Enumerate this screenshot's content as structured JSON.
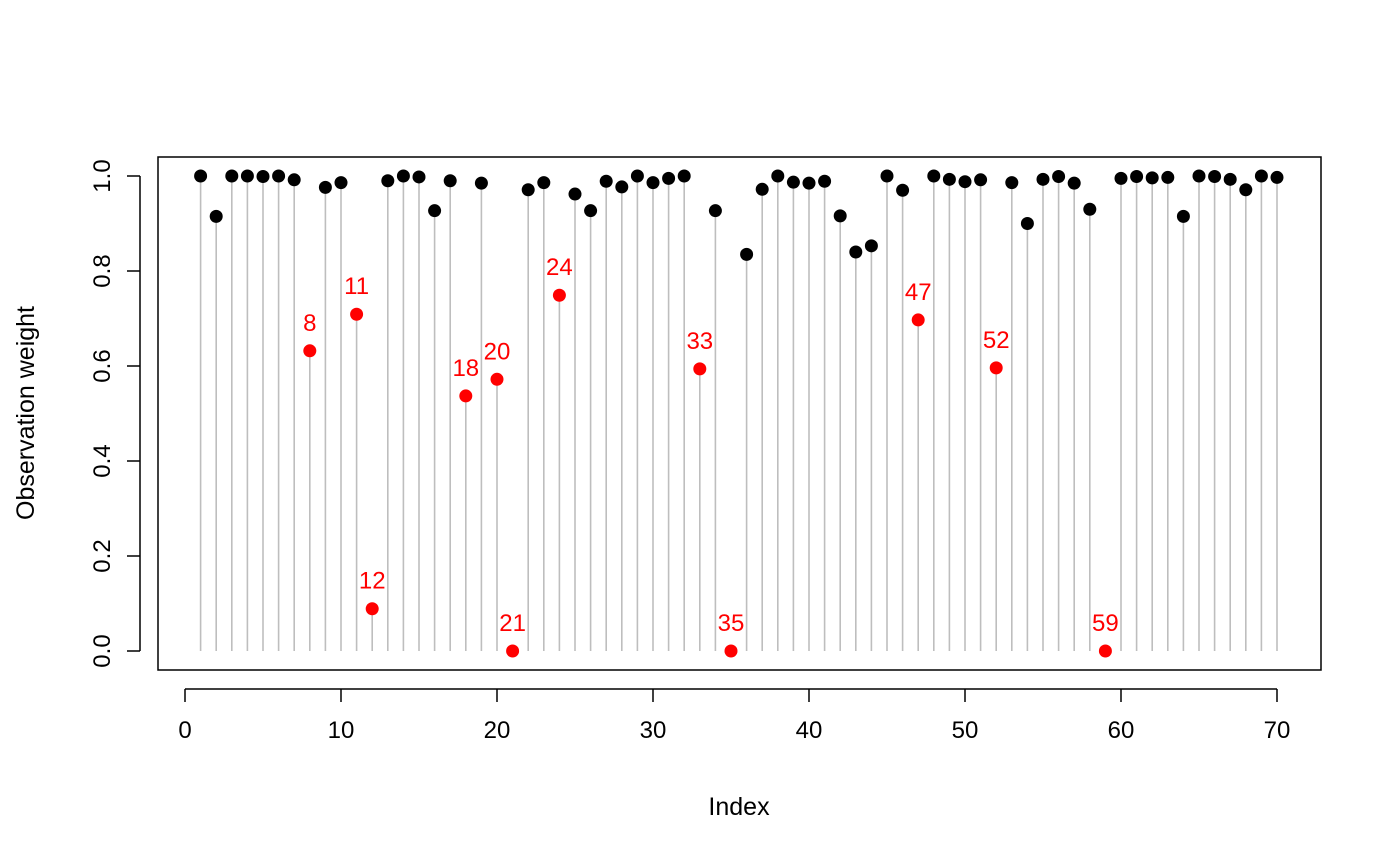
{
  "chart_data": {
    "type": "scatter",
    "style": "needle",
    "title": "",
    "xlabel": "Index",
    "ylabel": "Observation weight",
    "xlim": [
      0,
      70
    ],
    "ylim": [
      0,
      1
    ],
    "xticks": [
      "0",
      "10",
      "20",
      "30",
      "40",
      "50",
      "60",
      "70"
    ],
    "yticks": [
      "0.0",
      "0.2",
      "0.4",
      "0.6",
      "0.8",
      "1.0"
    ],
    "grid": false,
    "legend": "none",
    "colors": {
      "normal": "#000000",
      "flagged": "#ff0000",
      "stem": "#bebebe"
    },
    "points": [
      {
        "x": 1,
        "y": 1.0
      },
      {
        "x": 2,
        "y": 0.915
      },
      {
        "x": 3,
        "y": 1.0
      },
      {
        "x": 4,
        "y": 1.0
      },
      {
        "x": 5,
        "y": 0.999
      },
      {
        "x": 6,
        "y": 1.0
      },
      {
        "x": 7,
        "y": 0.992
      },
      {
        "x": 8,
        "y": 0.632,
        "label": "8"
      },
      {
        "x": 9,
        "y": 0.976
      },
      {
        "x": 10,
        "y": 0.986
      },
      {
        "x": 11,
        "y": 0.709,
        "label": "11"
      },
      {
        "x": 12,
        "y": 0.089,
        "label": "12"
      },
      {
        "x": 13,
        "y": 0.99
      },
      {
        "x": 14,
        "y": 1.0
      },
      {
        "x": 15,
        "y": 0.998
      },
      {
        "x": 16,
        "y": 0.927
      },
      {
        "x": 17,
        "y": 0.99
      },
      {
        "x": 18,
        "y": 0.537,
        "label": "18"
      },
      {
        "x": 19,
        "y": 0.985
      },
      {
        "x": 20,
        "y": 0.572,
        "label": "20"
      },
      {
        "x": 21,
        "y": 0.0,
        "label": "21"
      },
      {
        "x": 22,
        "y": 0.971
      },
      {
        "x": 23,
        "y": 0.986
      },
      {
        "x": 24,
        "y": 0.749,
        "label": "24"
      },
      {
        "x": 25,
        "y": 0.962
      },
      {
        "x": 26,
        "y": 0.927
      },
      {
        "x": 27,
        "y": 0.989
      },
      {
        "x": 28,
        "y": 0.977
      },
      {
        "x": 29,
        "y": 1.0
      },
      {
        "x": 30,
        "y": 0.986
      },
      {
        "x": 31,
        "y": 0.995
      },
      {
        "x": 32,
        "y": 1.0
      },
      {
        "x": 33,
        "y": 0.594,
        "label": "33"
      },
      {
        "x": 34,
        "y": 0.927
      },
      {
        "x": 35,
        "y": 0.0,
        "label": "35"
      },
      {
        "x": 36,
        "y": 0.835
      },
      {
        "x": 37,
        "y": 0.972
      },
      {
        "x": 38,
        "y": 1.0
      },
      {
        "x": 39,
        "y": 0.987
      },
      {
        "x": 40,
        "y": 0.985
      },
      {
        "x": 41,
        "y": 0.989
      },
      {
        "x": 42,
        "y": 0.916
      },
      {
        "x": 43,
        "y": 0.84
      },
      {
        "x": 44,
        "y": 0.853
      },
      {
        "x": 45,
        "y": 1.0
      },
      {
        "x": 46,
        "y": 0.97
      },
      {
        "x": 47,
        "y": 0.697,
        "label": "47"
      },
      {
        "x": 48,
        "y": 1.0
      },
      {
        "x": 49,
        "y": 0.993
      },
      {
        "x": 50,
        "y": 0.988
      },
      {
        "x": 51,
        "y": 0.992
      },
      {
        "x": 52,
        "y": 0.596,
        "label": "52"
      },
      {
        "x": 53,
        "y": 0.986
      },
      {
        "x": 54,
        "y": 0.9
      },
      {
        "x": 55,
        "y": 0.993
      },
      {
        "x": 56,
        "y": 0.999
      },
      {
        "x": 57,
        "y": 0.985
      },
      {
        "x": 58,
        "y": 0.93
      },
      {
        "x": 59,
        "y": 0.0,
        "label": "59"
      },
      {
        "x": 60,
        "y": 0.995
      },
      {
        "x": 61,
        "y": 0.999
      },
      {
        "x": 62,
        "y": 0.996
      },
      {
        "x": 63,
        "y": 0.997
      },
      {
        "x": 64,
        "y": 0.915
      },
      {
        "x": 65,
        "y": 1.0
      },
      {
        "x": 66,
        "y": 0.999
      },
      {
        "x": 67,
        "y": 0.993
      },
      {
        "x": 68,
        "y": 0.971
      },
      {
        "x": 69,
        "y": 1.0
      },
      {
        "x": 70,
        "y": 0.997
      }
    ]
  }
}
